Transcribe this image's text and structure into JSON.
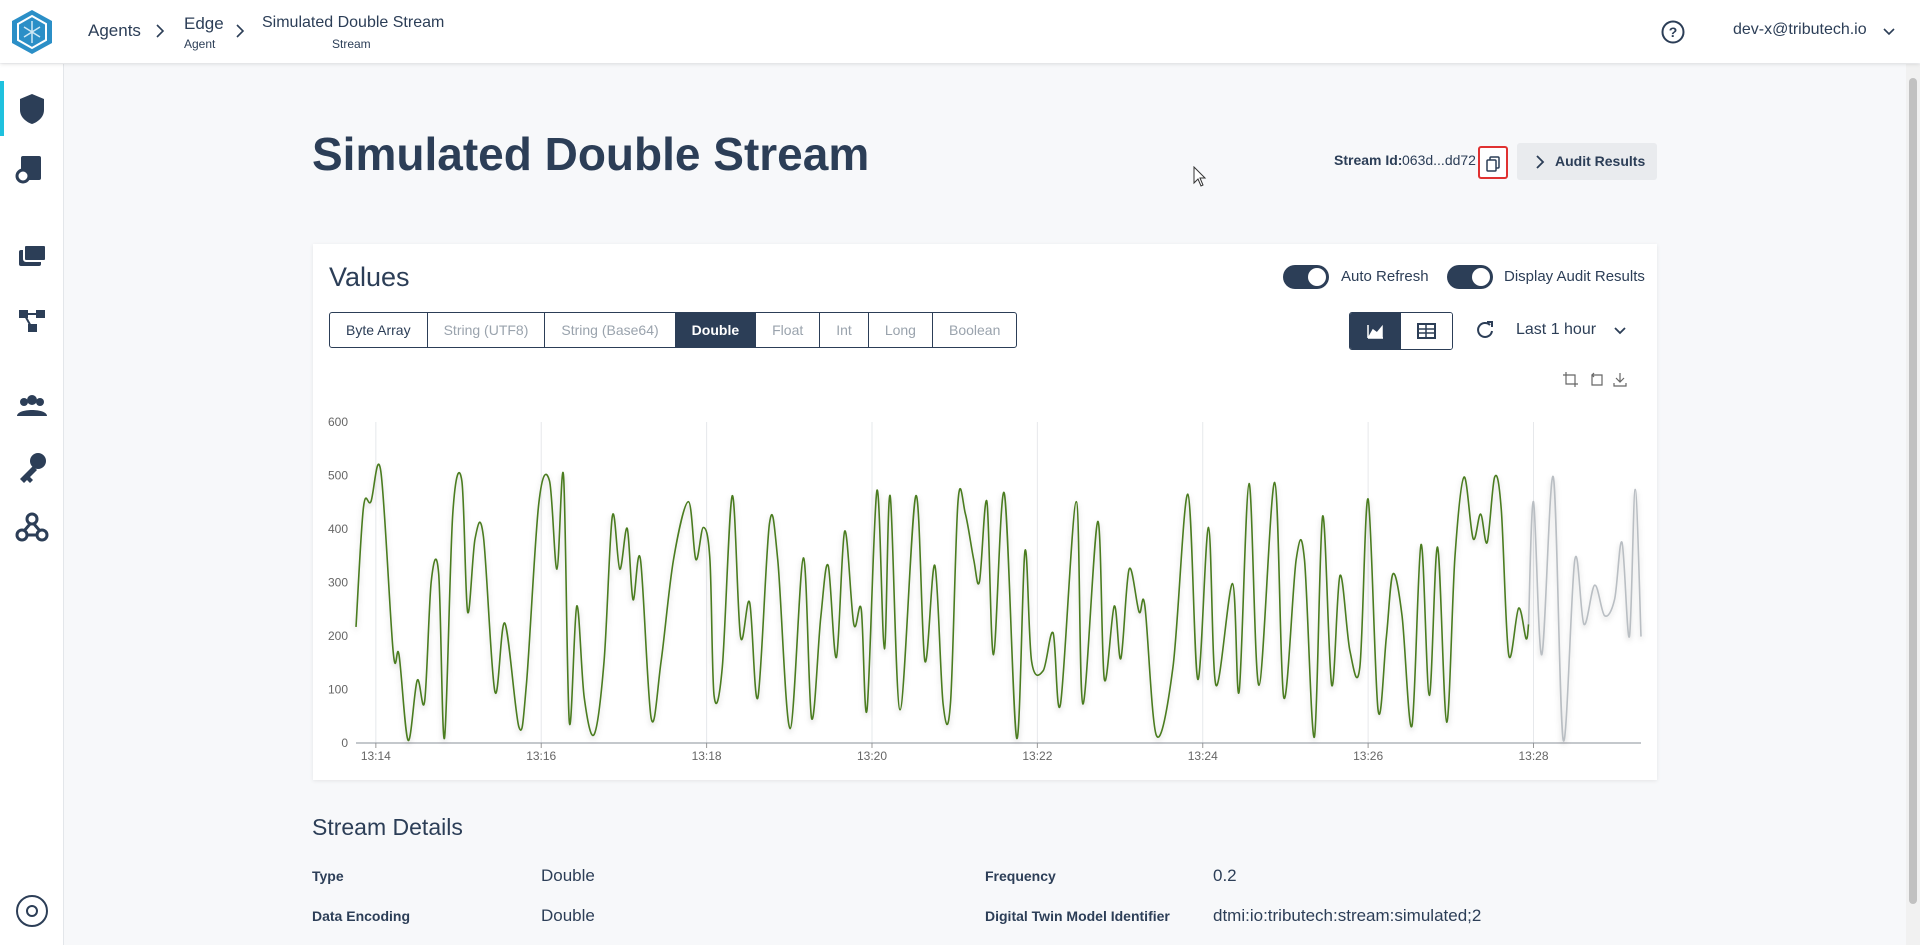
{
  "header": {
    "breadcrumbs": [
      {
        "label": "Agents"
      },
      {
        "label": "Edge",
        "sublabel": "Agent"
      },
      {
        "label": "Simulated Double Stream",
        "sublabel": "Stream"
      }
    ],
    "user": "dev-x@tributech.io"
  },
  "page": {
    "title": "Simulated Double Stream",
    "stream_id_label": "Stream Id:",
    "stream_id": "063d...dd72",
    "audit_button": "Audit Results"
  },
  "values_panel": {
    "title": "Values",
    "toggles": [
      "Auto Refresh",
      "Display Audit Results"
    ],
    "type_tabs": [
      "Byte Array",
      "String (UTF8)",
      "String (Base64)",
      "Double",
      "Float",
      "Int",
      "Long",
      "Boolean"
    ],
    "selected_tab": "Double",
    "time_range": "Last 1 hour"
  },
  "chart_data": {
    "type": "line",
    "grid": "x",
    "x": [
      793.76,
      793.85,
      793.94,
      794.06,
      794.21,
      794.28,
      794.39,
      794.5,
      794.59,
      794.67,
      794.76,
      794.83,
      794.93,
      795.04,
      795.11,
      795.2,
      795.3,
      795.44,
      795.56,
      795.73,
      795.82,
      795.97,
      796.1,
      796.19,
      796.27,
      796.34,
      796.43,
      796.52,
      796.64,
      796.76,
      796.86,
      796.95,
      797.04,
      797.11,
      797.2,
      797.33,
      797.45,
      797.6,
      797.78,
      797.87,
      797.96,
      798.04,
      798.09,
      798.19,
      798.31,
      798.41,
      798.52,
      798.62,
      798.76,
      798.86,
      799.01,
      799.17,
      799.27,
      799.38,
      799.47,
      799.57,
      799.67,
      799.78,
      799.87,
      799.94,
      800.06,
      800.15,
      800.22,
      800.34,
      800.53,
      800.64,
      800.76,
      800.86,
      800.95,
      801.04,
      801.13,
      801.23,
      801.3,
      801.39,
      801.47,
      801.6,
      801.75,
      801.85,
      801.93,
      802.07,
      802.19,
      802.28,
      802.47,
      802.55,
      802.73,
      802.81,
      802.93,
      803.01,
      803.11,
      803.23,
      803.3,
      803.44,
      803.64,
      803.82,
      803.94,
      804.07,
      804.16,
      804.36,
      804.44,
      804.56,
      804.68,
      804.87,
      804.98,
      805.13,
      805.23,
      805.35,
      805.45,
      805.56,
      805.66,
      805.78,
      805.9,
      806.0,
      806.12,
      806.22,
      806.3,
      806.41,
      806.53,
      806.64,
      806.74,
      806.84,
      806.95,
      807.05,
      807.16,
      807.27,
      807.36,
      807.44,
      807.53,
      807.61,
      807.7,
      807.82,
      807.91,
      807.94,
      808.0,
      808.1,
      808.24,
      808.36,
      808.5,
      808.61,
      808.74,
      808.86,
      808.98,
      809.07,
      809.16,
      809.23,
      809.3
    ],
    "series": [
      {
        "color": "#4a7c1f",
        "values": [
          217,
          440,
          451,
          508,
          170,
          165,
          5,
          117,
          78,
          302,
          316,
          9,
          428,
          490,
          245,
          382,
          387,
          96,
          224,
          30,
          108,
          447,
          490,
          325,
          499,
          39,
          256,
          85,
          16,
          153,
          424,
          325,
          401,
          268,
          343,
          46,
          153,
          343,
          451,
          343,
          403,
          343,
          89,
          142,
          462,
          199,
          263,
          85,
          410,
          343,
          27,
          346,
          46,
          234,
          332,
          160,
          396,
          222,
          250,
          62,
          472,
          176,
          462,
          62,
          462,
          153,
          332,
          73,
          76,
          451,
          428,
          343,
          302,
          451,
          165,
          467,
          9,
          359,
          153,
          135,
          206,
          73,
          451,
          73,
          414,
          119,
          256,
          158,
          325,
          245,
          256,
          14,
          142,
          465,
          119,
          403,
          108,
          298,
          96,
          485,
          108,
          487,
          85,
          343,
          343,
          11,
          424,
          108,
          313,
          172,
          142,
          456,
          62,
          197,
          316,
          238,
          32,
          371,
          89,
          366,
          39,
          348,
          497,
          382,
          428,
          375,
          497,
          437,
          165,
          252,
          195,
          222,
          null,
          null,
          null,
          null,
          null,
          null,
          null,
          null,
          null,
          null,
          null,
          null,
          null
        ]
      },
      {
        "color": "#b9bec3",
        "values": [
          null,
          null,
          null,
          null,
          null,
          null,
          null,
          null,
          null,
          null,
          null,
          null,
          null,
          null,
          null,
          null,
          null,
          null,
          null,
          null,
          null,
          null,
          null,
          null,
          null,
          null,
          null,
          null,
          null,
          null,
          null,
          null,
          null,
          null,
          null,
          null,
          null,
          null,
          null,
          null,
          null,
          null,
          null,
          null,
          null,
          null,
          null,
          null,
          null,
          null,
          null,
          null,
          null,
          null,
          null,
          null,
          null,
          null,
          null,
          null,
          null,
          null,
          null,
          null,
          null,
          null,
          null,
          null,
          null,
          null,
          null,
          null,
          null,
          null,
          null,
          null,
          null,
          null,
          null,
          null,
          null,
          null,
          null,
          null,
          null,
          null,
          null,
          null,
          null,
          null,
          null,
          null,
          null,
          null,
          null,
          null,
          null,
          null,
          null,
          null,
          null,
          null,
          null,
          null,
          null,
          null,
          null,
          null,
          null,
          null,
          null,
          null,
          null,
          null,
          null,
          null,
          null,
          null,
          null,
          null,
          null,
          null,
          null,
          null,
          null,
          null,
          null,
          null,
          null,
          null,
          null,
          222,
          451,
          165,
          497,
          5,
          343,
          222,
          295,
          238,
          268,
          375,
          199,
          474,
          199
        ]
      }
    ],
    "xlim": [
      793.76,
      809.3
    ],
    "xticks": [
      {
        "value": 794,
        "label": "13:14"
      },
      {
        "value": 796,
        "label": "13:16"
      },
      {
        "value": 798,
        "label": "13:18"
      },
      {
        "value": 800,
        "label": "13:20"
      },
      {
        "value": 802,
        "label": "13:22"
      },
      {
        "value": 804,
        "label": "13:24"
      },
      {
        "value": 806,
        "label": "13:26"
      },
      {
        "value": 808,
        "label": "13:28"
      }
    ],
    "ylim": [
      0,
      600
    ],
    "yticks": [
      0,
      100,
      200,
      300,
      400,
      500,
      600
    ]
  },
  "details": {
    "title": "Stream Details",
    "fields": [
      {
        "label": "Type",
        "value": "Double"
      },
      {
        "label": "Frequency",
        "value": "0.2"
      },
      {
        "label": "Data Encoding",
        "value": "Double"
      },
      {
        "label": "Digital Twin Model Identifier",
        "value": "dtmi:io:tributech:stream:simulated;2"
      }
    ]
  }
}
